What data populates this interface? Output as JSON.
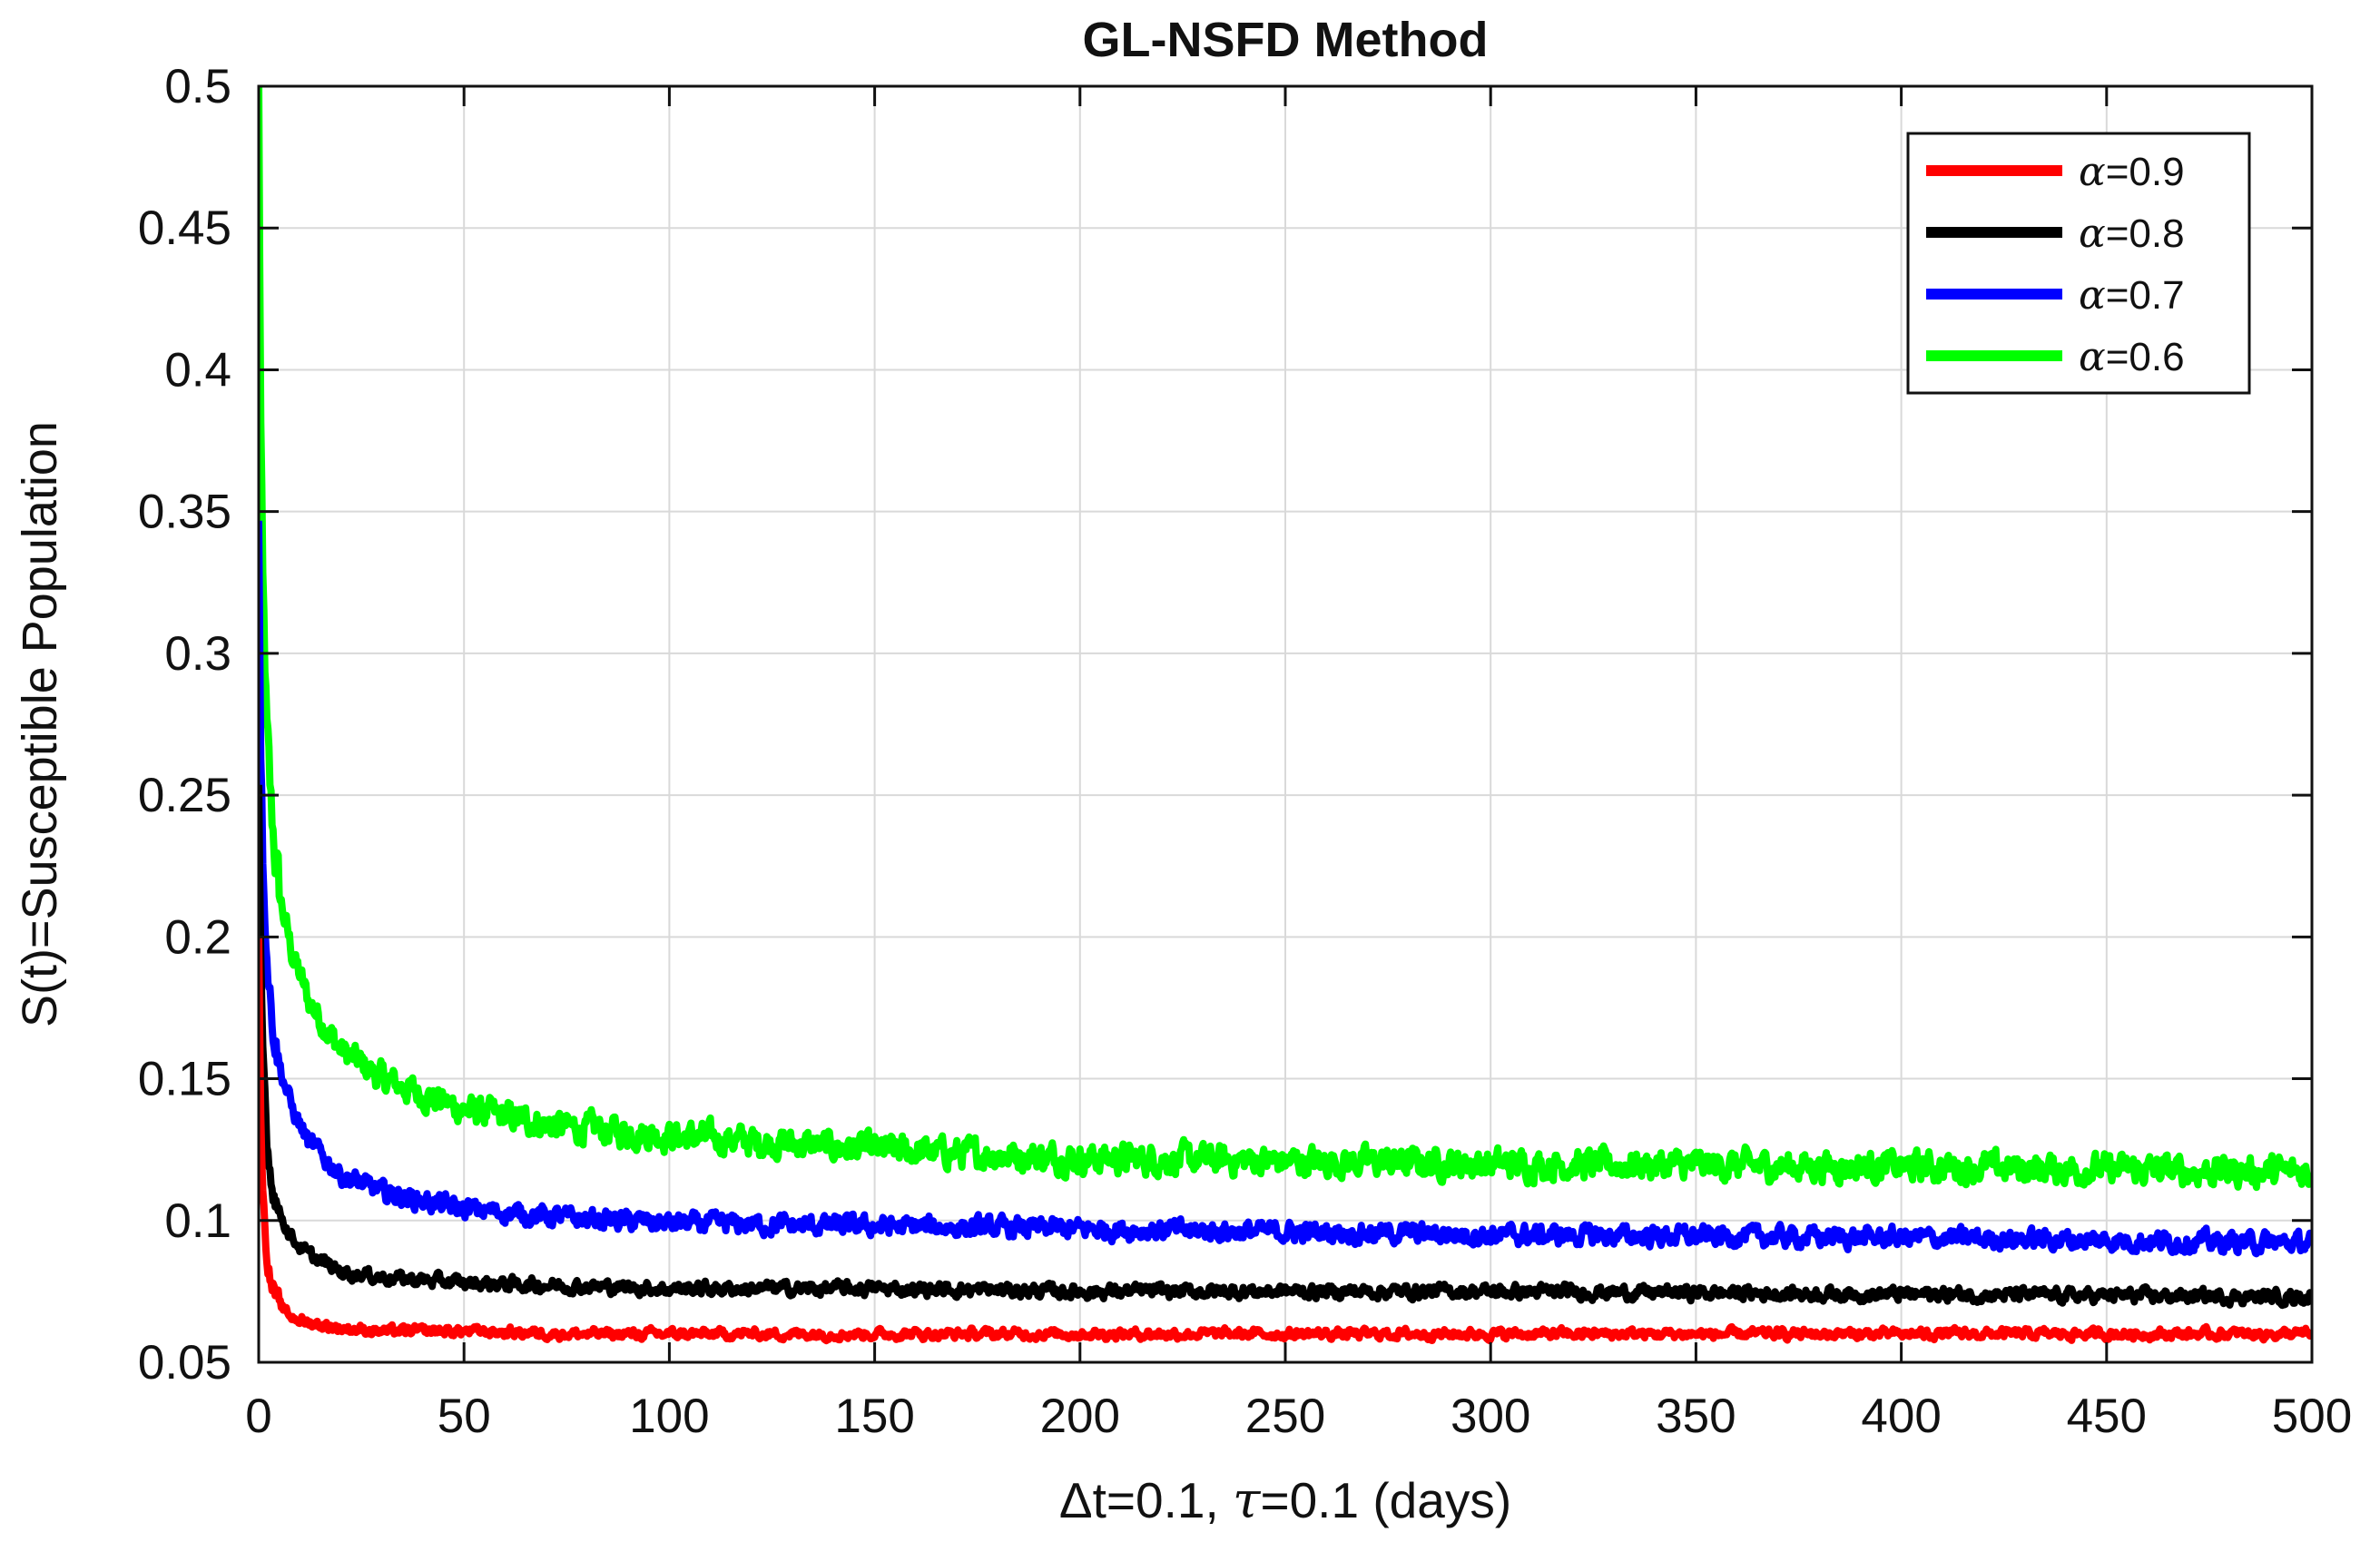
{
  "chart_data": {
    "type": "line",
    "title": "GL-NSFD Method",
    "xlabel_parts": [
      "Δt=0.1, ",
      "τ",
      "=0.1 (days)"
    ],
    "ylabel": "S(t)=Susceptible Population",
    "xlim": [
      0,
      500
    ],
    "ylim": [
      0.05,
      0.5
    ],
    "xticks": [
      0,
      50,
      100,
      150,
      200,
      250,
      300,
      350,
      400,
      450,
      500
    ],
    "yticks": [
      0.05,
      0.1,
      0.15,
      0.2,
      0.25,
      0.3,
      0.35,
      0.4,
      0.45,
      0.5
    ],
    "xtick_labels": [
      "0",
      "50",
      "100",
      "150",
      "200",
      "250",
      "300",
      "350",
      "400",
      "450",
      "500"
    ],
    "ytick_labels": [
      "0.05",
      "0.1",
      "0.15",
      "0.2",
      "0.25",
      "0.3",
      "0.35",
      "0.4",
      "0.45",
      "0.5"
    ],
    "grid": true,
    "legend_position": "top-right",
    "series": [
      {
        "name": "α=0.9",
        "symbol": "α",
        "label_suffix": "=0.9",
        "color": "#ff0000",
        "noise": 0.003,
        "x": [
          0,
          0.5,
          1,
          2,
          3,
          5,
          8,
          12,
          20,
          30,
          50,
          75,
          100,
          150,
          200,
          300,
          400,
          500
        ],
        "y": [
          0.2,
          0.14,
          0.11,
          0.088,
          0.078,
          0.07,
          0.066,
          0.064,
          0.062,
          0.061,
          0.061,
          0.06,
          0.06,
          0.06,
          0.06,
          0.06,
          0.06,
          0.06
        ]
      },
      {
        "name": "α=0.8",
        "symbol": "α",
        "label_suffix": "=0.8",
        "color": "#000000",
        "noise": 0.004,
        "x": [
          0,
          0.5,
          1,
          2,
          3,
          5,
          8,
          12,
          20,
          30,
          50,
          75,
          100,
          150,
          200,
          300,
          400,
          500
        ],
        "y": [
          0.25,
          0.19,
          0.16,
          0.13,
          0.115,
          0.103,
          0.094,
          0.088,
          0.082,
          0.08,
          0.078,
          0.077,
          0.076,
          0.076,
          0.075,
          0.075,
          0.074,
          0.073
        ]
      },
      {
        "name": "α=0.7",
        "symbol": "α",
        "label_suffix": "=0.7",
        "color": "#0000ff",
        "noise": 0.006,
        "x": [
          0,
          0.5,
          1,
          2,
          3,
          5,
          8,
          12,
          20,
          30,
          50,
          75,
          100,
          150,
          200,
          300,
          400,
          500
        ],
        "y": [
          0.35,
          0.27,
          0.23,
          0.195,
          0.175,
          0.155,
          0.14,
          0.128,
          0.116,
          0.11,
          0.104,
          0.101,
          0.099,
          0.098,
          0.097,
          0.095,
          0.094,
          0.092
        ]
      },
      {
        "name": "α=0.6",
        "symbol": "α",
        "label_suffix": "=0.6",
        "color": "#00ff00",
        "noise": 0.009,
        "x": [
          0,
          0.5,
          1,
          2,
          3,
          5,
          8,
          12,
          20,
          30,
          50,
          75,
          100,
          150,
          200,
          300,
          400,
          500
        ],
        "y": [
          0.5,
          0.38,
          0.32,
          0.27,
          0.245,
          0.215,
          0.195,
          0.178,
          0.16,
          0.15,
          0.139,
          0.133,
          0.13,
          0.125,
          0.122,
          0.12,
          0.119,
          0.117
        ]
      }
    ]
  }
}
